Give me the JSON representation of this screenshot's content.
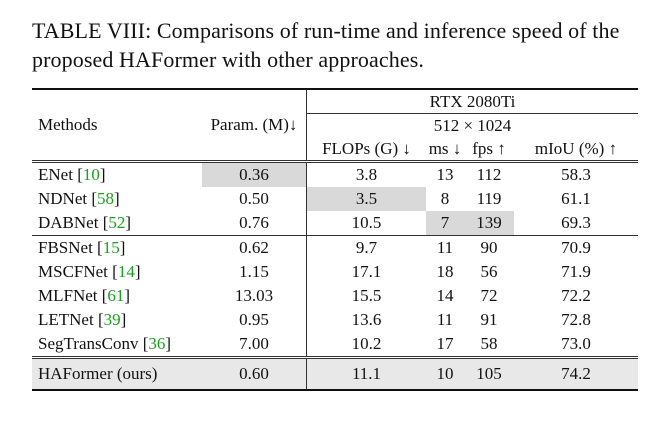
{
  "caption": {
    "label": "TABLE VIII:",
    "text": "Comparisons of run-time and inference speed of the proposed HAFormer with other approaches."
  },
  "header": {
    "methods": "Methods",
    "params": "Param. (M)↓",
    "gpu": "RTX 2080Ti",
    "resolution": "512 × 1024",
    "flops": "FLOPs (G) ↓",
    "ms": "ms ↓",
    "fps": "fps ↑",
    "miou": "mIoU (%) ↑"
  },
  "rows": [
    {
      "name": "ENet",
      "ref": "10",
      "params": "0.36",
      "flops": "3.8",
      "ms": "13",
      "fps": "112",
      "miou": "58.3"
    },
    {
      "name": "NDNet",
      "ref": "58",
      "params": "0.50",
      "flops": "3.5",
      "ms": "8",
      "fps": "119",
      "miou": "61.1"
    },
    {
      "name": "DABNet",
      "ref": "52",
      "params": "0.76",
      "flops": "10.5",
      "ms": "7",
      "fps": "139",
      "miou": "69.3"
    },
    {
      "name": "FBSNet",
      "ref": "15",
      "params": "0.62",
      "flops": "9.7",
      "ms": "11",
      "fps": "90",
      "miou": "70.9"
    },
    {
      "name": "MSCFNet",
      "ref": "14",
      "params": "1.15",
      "flops": "17.1",
      "ms": "18",
      "fps": "56",
      "miou": "71.9"
    },
    {
      "name": "MLFNet",
      "ref": "61",
      "params": "13.03",
      "flops": "15.5",
      "ms": "14",
      "fps": "72",
      "miou": "72.2"
    },
    {
      "name": "LETNet",
      "ref": "39",
      "params": "0.95",
      "flops": "13.6",
      "ms": "11",
      "fps": "91",
      "miou": "72.8"
    },
    {
      "name": "SegTransConv",
      "ref": "36",
      "params": "7.00",
      "flops": "10.2",
      "ms": "17",
      "fps": "58",
      "miou": "73.0"
    }
  ],
  "ours": {
    "name": "HAFormer (ours)",
    "params": "0.60",
    "flops": "11.1",
    "ms": "10",
    "fps": "105",
    "miou": "74.2"
  }
}
